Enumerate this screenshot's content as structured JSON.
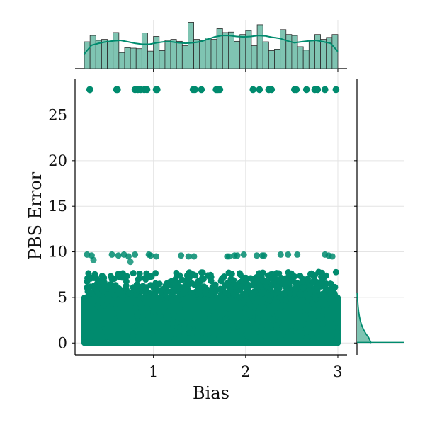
{
  "chart_data": {
    "type": "scatter",
    "subtype": "jointplot",
    "xlabel": "Bias",
    "ylabel": "PBS Error",
    "x_ticks": [
      1,
      2,
      3
    ],
    "y_ticks": [
      0,
      5,
      10,
      15,
      20,
      25
    ],
    "x_range": [
      0.15,
      3.1
    ],
    "y_range": [
      -1.3,
      29
    ],
    "grid": true,
    "color": "#008b6e",
    "hist_color": "#7fc4b2",
    "series": [
      {
        "dense_band": {
          "x_min": 0.25,
          "x_max": 3.0,
          "y_min": 0,
          "y_max": 5.3
        },
        "upper_band": {
          "x_min": 0.28,
          "x_max": 2.98,
          "y_min": 5.3,
          "y_max": 7.8
        },
        "cluster_high": {
          "y": 27.8,
          "x": [
            0.31,
            0.31,
            0.6,
            0.61,
            0.8,
            0.83,
            0.86,
            0.9,
            0.93,
            1.03,
            1.04,
            1.43,
            1.45,
            1.52,
            1.68,
            1.7,
            1.72,
            2.08,
            2.15,
            2.25,
            2.28,
            2.53,
            2.55,
            2.66,
            2.75,
            2.78,
            2.86,
            2.98
          ]
        },
        "cluster_mid": {
          "x": [
            0.28,
            0.33,
            0.55,
            0.62,
            0.68,
            0.73,
            0.8,
            0.95,
            0.97,
            1.03,
            1.3,
            1.38,
            1.44,
            1.8,
            1.82,
            1.88,
            1.91,
            1.98,
            2.12,
            2.18,
            2.2,
            2.38,
            2.46,
            2.56,
            2.86,
            2.9,
            2.94
          ],
          "y": [
            9.7,
            9.6,
            9.7,
            9.6,
            9.7,
            9.5,
            9.7,
            9.7,
            9.6,
            9.5,
            9.6,
            9.5,
            9.5,
            9.5,
            9.5,
            9.6,
            9.6,
            9.7,
            9.6,
            9.6,
            9.6,
            9.7,
            9.7,
            9.7,
            9.7,
            9.6,
            9.5
          ]
        }
      }
    ],
    "marginal_x_hist": [
      0.55,
      0.68,
      0.58,
      0.6,
      0.56,
      0.74,
      0.33,
      0.43,
      0.42,
      0.41,
      0.73,
      0.36,
      0.66,
      0.37,
      0.58,
      0.6,
      0.56,
      0.47,
      0.95,
      0.6,
      0.58,
      0.63,
      0.6,
      0.82,
      0.74,
      0.75,
      0.56,
      0.7,
      0.78,
      0.47,
      0.9,
      0.55,
      0.37,
      0.4,
      0.8,
      0.7,
      0.68,
      0.45,
      0.38,
      0.57,
      0.7,
      0.6,
      0.64,
      0.7
    ],
    "marginal_x_kde": [
      0.3,
      0.48,
      0.52,
      0.55,
      0.57,
      0.58,
      0.55,
      0.52,
      0.5,
      0.5,
      0.53,
      0.55,
      0.55,
      0.53,
      0.52,
      0.53,
      0.55,
      0.6,
      0.65,
      0.68,
      0.68,
      0.66,
      0.65,
      0.66,
      0.68,
      0.67,
      0.64,
      0.62,
      0.57,
      0.53,
      0.55,
      0.57,
      0.58,
      0.55,
      0.52,
      0.35
    ],
    "marginal_y_kde": {
      "y": [
        0,
        0.3,
        0.6,
        1.0,
        1.5,
        2.0,
        2.5,
        3.0,
        3.5,
        4.0,
        4.5,
        5.0,
        5.5
      ],
      "density": [
        0.22,
        0.2,
        0.18,
        0.14,
        0.1,
        0.07,
        0.05,
        0.035,
        0.025,
        0.018,
        0.012,
        0.006,
        0.002
      ]
    }
  }
}
